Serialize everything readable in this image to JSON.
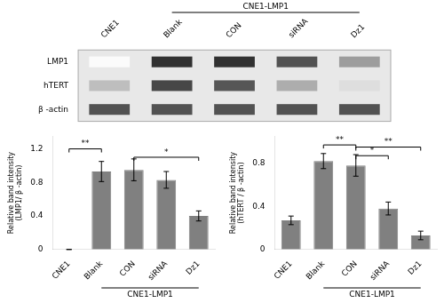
{
  "chart_data": [
    {
      "type": "heatmap",
      "x": [
        "CNE1",
        "Blank",
        "CON",
        "siRNA",
        "Dz1"
      ],
      "y": [
        "LMP1",
        "hTERT",
        "β -actin"
      ],
      "values": [
        [
          0.02,
          0.95,
          0.95,
          0.8,
          0.45
        ],
        [
          0.3,
          0.85,
          0.78,
          0.38,
          0.15
        ],
        [
          0.8,
          0.8,
          0.8,
          0.8,
          0.8
        ]
      ],
      "annotations": [
        {
          "text": "CNE1-LMP1",
          "from": "Blank",
          "to": "Dz1"
        }
      ]
    },
    {
      "type": "bar",
      "categories": [
        "CNE1",
        "Blank",
        "CON",
        "siRNA",
        "Dz1"
      ],
      "values": [
        0.0,
        0.93,
        0.95,
        0.83,
        0.4
      ],
      "errors": [
        0.0,
        0.12,
        0.13,
        0.1,
        0.06
      ],
      "color": "#808080",
      "ylabel": "Relative band intensity\n(LMP1/ β -actin)",
      "ylim": [
        0,
        1.35
      ],
      "yticks": [
        0,
        0.4,
        0.8,
        1.2
      ],
      "grid": false,
      "annotations": [
        {
          "text": "CNE1-LMP1",
          "from": "Blank",
          "to": "Dz1"
        },
        {
          "text": "**",
          "from": "CNE1",
          "to": "Blank",
          "y": 1.2
        },
        {
          "text": "*",
          "from": "CON",
          "to": "Dz1",
          "y": 1.1
        }
      ]
    },
    {
      "type": "bar",
      "categories": [
        "CNE1",
        "Blank",
        "CON",
        "siRNA",
        "Dz1"
      ],
      "values": [
        0.27,
        0.82,
        0.78,
        0.38,
        0.13
      ],
      "errors": [
        0.04,
        0.07,
        0.1,
        0.06,
        0.04
      ],
      "color": "#808080",
      "ylabel": "Relative band intensity\n(hTERT / β -actin)",
      "ylim": [
        0,
        1.05
      ],
      "yticks": [
        0,
        0.4,
        0.8
      ],
      "grid": false,
      "annotations": [
        {
          "text": "CNE1-LMP1",
          "from": "Blank",
          "to": "Dz1"
        },
        {
          "text": "**",
          "from": "Blank",
          "to": "CON",
          "y": 0.97
        },
        {
          "text": "*",
          "from": "CON",
          "to": "siRNA",
          "y": 0.87
        },
        {
          "text": "**",
          "from": "CON",
          "to": "Dz1",
          "y": 0.95
        }
      ]
    }
  ]
}
